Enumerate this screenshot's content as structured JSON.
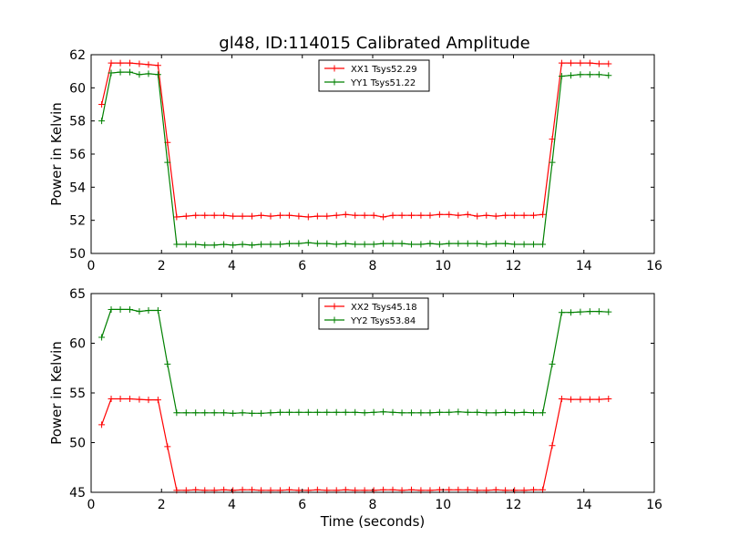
{
  "title": "gl48, ID:114015 Calibrated Amplitude",
  "chart_data": [
    {
      "type": "line",
      "title": "gl48, ID:114015 Calibrated Amplitude",
      "xlabel": "",
      "ylabel": "Power in Kelvin",
      "xlim": [
        0,
        16
      ],
      "ylim": [
        50,
        62
      ],
      "xticks": [
        "0",
        "2",
        "4",
        "6",
        "8",
        "10",
        "12",
        "14",
        "16"
      ],
      "yticks": [
        "50",
        "52",
        "54",
        "56",
        "58",
        "60",
        "62"
      ],
      "grid": false,
      "legend_position": "top-center",
      "x": [
        0.3,
        0.57,
        0.83,
        1.1,
        1.37,
        1.63,
        1.9,
        2.17,
        2.43,
        2.7,
        2.97,
        3.23,
        3.5,
        3.77,
        4.03,
        4.3,
        4.57,
        4.83,
        5.1,
        5.37,
        5.63,
        5.9,
        6.17,
        6.43,
        6.7,
        6.97,
        7.23,
        7.5,
        7.77,
        8.03,
        8.3,
        8.57,
        8.83,
        9.1,
        9.37,
        9.63,
        9.9,
        10.17,
        10.43,
        10.7,
        10.97,
        11.23,
        11.5,
        11.77,
        12.03,
        12.3,
        12.57,
        12.83,
        13.1,
        13.37,
        13.63,
        13.9,
        14.17,
        14.43,
        14.7
      ],
      "series": [
        {
          "name": "XX1 Tsys52.29",
          "color": "#ff0000",
          "values": [
            59.0,
            61.5,
            61.5,
            61.5,
            61.45,
            61.4,
            61.35,
            56.7,
            52.2,
            52.25,
            52.3,
            52.3,
            52.3,
            52.3,
            52.25,
            52.25,
            52.25,
            52.3,
            52.25,
            52.3,
            52.3,
            52.25,
            52.2,
            52.25,
            52.25,
            52.3,
            52.35,
            52.3,
            52.3,
            52.3,
            52.2,
            52.3,
            52.3,
            52.3,
            52.3,
            52.3,
            52.35,
            52.35,
            52.3,
            52.35,
            52.25,
            52.3,
            52.25,
            52.3,
            52.3,
            52.3,
            52.3,
            52.35,
            56.9,
            61.5,
            61.5,
            61.5,
            61.5,
            61.45,
            61.45
          ]
        },
        {
          "name": "YY1 Tsys51.22",
          "color": "#008000",
          "values": [
            58.0,
            60.9,
            60.95,
            60.95,
            60.8,
            60.85,
            60.8,
            55.5,
            50.55,
            50.55,
            50.55,
            50.5,
            50.5,
            50.55,
            50.5,
            50.55,
            50.5,
            50.55,
            50.55,
            50.55,
            50.6,
            50.6,
            50.65,
            50.6,
            50.6,
            50.55,
            50.6,
            50.55,
            50.55,
            50.55,
            50.6,
            50.6,
            50.6,
            50.55,
            50.55,
            50.6,
            50.55,
            50.6,
            50.6,
            50.6,
            50.6,
            50.55,
            50.6,
            50.6,
            50.55,
            50.55,
            50.55,
            50.55,
            55.5,
            60.7,
            60.75,
            60.8,
            60.8,
            60.8,
            60.75
          ]
        }
      ]
    },
    {
      "type": "line",
      "title": "",
      "xlabel": "Time (seconds)",
      "ylabel": "Power in Kelvin",
      "xlim": [
        0,
        16
      ],
      "ylim": [
        45,
        65
      ],
      "xticks": [
        "0",
        "2",
        "4",
        "6",
        "8",
        "10",
        "12",
        "14",
        "16"
      ],
      "yticks": [
        "45",
        "50",
        "55",
        "60",
        "65"
      ],
      "grid": false,
      "legend_position": "top-center",
      "x": [
        0.3,
        0.57,
        0.83,
        1.1,
        1.37,
        1.63,
        1.9,
        2.17,
        2.43,
        2.7,
        2.97,
        3.23,
        3.5,
        3.77,
        4.03,
        4.3,
        4.57,
        4.83,
        5.1,
        5.37,
        5.63,
        5.9,
        6.17,
        6.43,
        6.7,
        6.97,
        7.23,
        7.5,
        7.77,
        8.03,
        8.3,
        8.57,
        8.83,
        9.1,
        9.37,
        9.63,
        9.9,
        10.17,
        10.43,
        10.7,
        10.97,
        11.23,
        11.5,
        11.77,
        12.03,
        12.3,
        12.57,
        12.83,
        13.1,
        13.37,
        13.63,
        13.9,
        14.17,
        14.43,
        14.7
      ],
      "series": [
        {
          "name": "XX2 Tsys45.18",
          "color": "#ff0000",
          "values": [
            51.8,
            54.4,
            54.4,
            54.4,
            54.35,
            54.3,
            54.3,
            49.6,
            45.2,
            45.2,
            45.25,
            45.2,
            45.2,
            45.25,
            45.2,
            45.25,
            45.25,
            45.2,
            45.2,
            45.2,
            45.25,
            45.2,
            45.2,
            45.25,
            45.2,
            45.2,
            45.25,
            45.2,
            45.2,
            45.2,
            45.25,
            45.25,
            45.2,
            45.25,
            45.2,
            45.2,
            45.25,
            45.25,
            45.25,
            45.25,
            45.2,
            45.2,
            45.25,
            45.2,
            45.2,
            45.2,
            45.25,
            45.25,
            49.7,
            54.4,
            54.35,
            54.35,
            54.35,
            54.35,
            54.4
          ]
        },
        {
          "name": "YY2 Tsys53.84",
          "color": "#008000",
          "values": [
            60.6,
            63.4,
            63.4,
            63.4,
            63.2,
            63.3,
            63.3,
            57.9,
            53.0,
            53.0,
            53.0,
            53.0,
            53.0,
            53.0,
            52.95,
            53.0,
            52.95,
            52.95,
            53.0,
            53.05,
            53.05,
            53.05,
            53.05,
            53.05,
            53.05,
            53.05,
            53.05,
            53.05,
            53.0,
            53.05,
            53.1,
            53.05,
            53.0,
            53.0,
            53.0,
            53.0,
            53.05,
            53.05,
            53.1,
            53.05,
            53.05,
            53.0,
            53.0,
            53.05,
            53.0,
            53.05,
            53.0,
            53.0,
            57.9,
            63.1,
            63.1,
            63.15,
            63.2,
            63.2,
            63.15
          ]
        }
      ]
    }
  ]
}
